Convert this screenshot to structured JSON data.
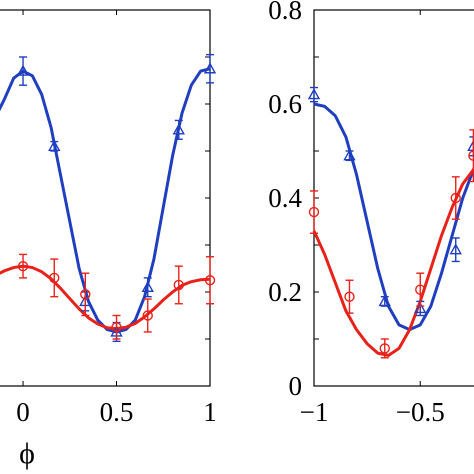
{
  "chart_data": [
    {
      "type": "line",
      "panel": "left",
      "xlabel": "ϕ",
      "ylabel": "",
      "xlim": [
        -0.15,
        1.0
      ],
      "ylim": [
        0.0,
        0.8
      ],
      "xticks": [
        0,
        0.5,
        1
      ],
      "xtick_labels": [
        "0",
        "0.5",
        "1"
      ],
      "grid": false,
      "series": [
        {
          "marker": "triangle",
          "color": "#1f3fbf",
          "points": [
            {
              "x": 0.0,
              "y": 0.67,
              "err": 0.03
            },
            {
              "x": 0.167,
              "y": 0.51,
              "err": 0.01
            },
            {
              "x": 0.333,
              "y": 0.18,
              "err": 0.02
            },
            {
              "x": 0.5,
              "y": 0.115,
              "err": 0.02
            },
            {
              "x": 0.667,
              "y": 0.21,
              "err": 0.02
            },
            {
              "x": 0.833,
              "y": 0.545,
              "err": 0.02
            },
            {
              "x": 1.0,
              "y": 0.675,
              "err": 0.03
            }
          ],
          "curve": {
            "x": [
              -0.15,
              -0.1,
              -0.05,
              0.0,
              0.05,
              0.1,
              0.15,
              0.2,
              0.25,
              0.3,
              0.35,
              0.4,
              0.45,
              0.5,
              0.55,
              0.6,
              0.65,
              0.7,
              0.75,
              0.8,
              0.85,
              0.9,
              0.95,
              1.0
            ],
            "y": [
              0.57,
              0.61,
              0.655,
              0.67,
              0.66,
              0.62,
              0.55,
              0.45,
              0.35,
              0.25,
              0.18,
              0.14,
              0.12,
              0.115,
              0.12,
              0.14,
              0.19,
              0.27,
              0.38,
              0.49,
              0.58,
              0.64,
              0.67,
              0.675
            ]
          }
        },
        {
          "marker": "circle",
          "color": "#e8221a",
          "points": [
            {
              "x": 0.0,
              "y": 0.255,
              "err": 0.025
            },
            {
              "x": 0.167,
              "y": 0.23,
              "err": 0.04
            },
            {
              "x": 0.333,
              "y": 0.195,
              "err": 0.045
            },
            {
              "x": 0.5,
              "y": 0.125,
              "err": 0.025
            },
            {
              "x": 0.667,
              "y": 0.15,
              "err": 0.035
            },
            {
              "x": 0.833,
              "y": 0.215,
              "err": 0.04
            },
            {
              "x": 1.0,
              "y": 0.225,
              "err": 0.05
            }
          ],
          "curve": {
            "x": [
              -0.15,
              -0.1,
              -0.05,
              0.0,
              0.05,
              0.1,
              0.15,
              0.2,
              0.25,
              0.3,
              0.35,
              0.4,
              0.45,
              0.5,
              0.55,
              0.6,
              0.65,
              0.7,
              0.75,
              0.8,
              0.85,
              0.9,
              0.95,
              1.0
            ],
            "y": [
              0.235,
              0.245,
              0.252,
              0.255,
              0.252,
              0.243,
              0.228,
              0.208,
              0.186,
              0.164,
              0.145,
              0.132,
              0.124,
              0.122,
              0.125,
              0.133,
              0.147,
              0.164,
              0.183,
              0.2,
              0.214,
              0.222,
              0.226,
              0.227
            ]
          }
        }
      ]
    },
    {
      "type": "line",
      "panel": "right",
      "xlabel": "",
      "ylabel": "",
      "xlim": [
        -1.0,
        -0.2
      ],
      "ylim": [
        0.0,
        0.8
      ],
      "xticks": [
        -1,
        -0.5
      ],
      "xtick_labels": [
        "−1",
        "−0.5"
      ],
      "yticks": [
        0,
        0.2,
        0.4,
        0.6,
        0.8
      ],
      "ytick_labels": [
        "0",
        "0.2",
        "0.4",
        "0.6",
        "0.8"
      ],
      "grid": false,
      "series": [
        {
          "marker": "triangle",
          "color": "#1f3fbf",
          "points": [
            {
              "x": -1.0,
              "y": 0.62,
              "err": 0.015
            },
            {
              "x": -0.833,
              "y": 0.49,
              "err": 0.01
            },
            {
              "x": -0.667,
              "y": 0.18,
              "err": 0.01
            },
            {
              "x": -0.5,
              "y": 0.165,
              "err": 0.015
            },
            {
              "x": -0.333,
              "y": 0.29,
              "err": 0.025
            },
            {
              "x": -0.25,
              "y": 0.51,
              "err": 0.02
            }
          ],
          "curve": {
            "x": [
              -1.0,
              -0.95,
              -0.9,
              -0.85,
              -0.8,
              -0.75,
              -0.7,
              -0.65,
              -0.6,
              -0.55,
              -0.5,
              -0.45,
              -0.4,
              -0.35,
              -0.3,
              -0.25,
              -0.2
            ],
            "y": [
              0.6,
              0.595,
              0.575,
              0.53,
              0.45,
              0.35,
              0.25,
              0.17,
              0.13,
              0.12,
              0.13,
              0.17,
              0.24,
              0.32,
              0.4,
              0.46,
              0.5
            ]
          }
        },
        {
          "marker": "circle",
          "color": "#e8221a",
          "points": [
            {
              "x": -1.0,
              "y": 0.37,
              "err": 0.045
            },
            {
              "x": -0.833,
              "y": 0.19,
              "err": 0.035
            },
            {
              "x": -0.667,
              "y": 0.08,
              "err": 0.02
            },
            {
              "x": -0.5,
              "y": 0.205,
              "err": 0.035
            },
            {
              "x": -0.333,
              "y": 0.4,
              "err": 0.045
            },
            {
              "x": -0.25,
              "y": 0.49,
              "err": 0.055
            }
          ],
          "curve": {
            "x": [
              -1.0,
              -0.95,
              -0.9,
              -0.85,
              -0.8,
              -0.75,
              -0.7,
              -0.65,
              -0.6,
              -0.55,
              -0.5,
              -0.45,
              -0.4,
              -0.35,
              -0.3,
              -0.25,
              -0.2
            ],
            "y": [
              0.33,
              0.28,
              0.22,
              0.16,
              0.12,
              0.09,
              0.07,
              0.065,
              0.08,
              0.12,
              0.18,
              0.25,
              0.32,
              0.38,
              0.43,
              0.46,
              0.47
            ]
          }
        }
      ]
    }
  ]
}
